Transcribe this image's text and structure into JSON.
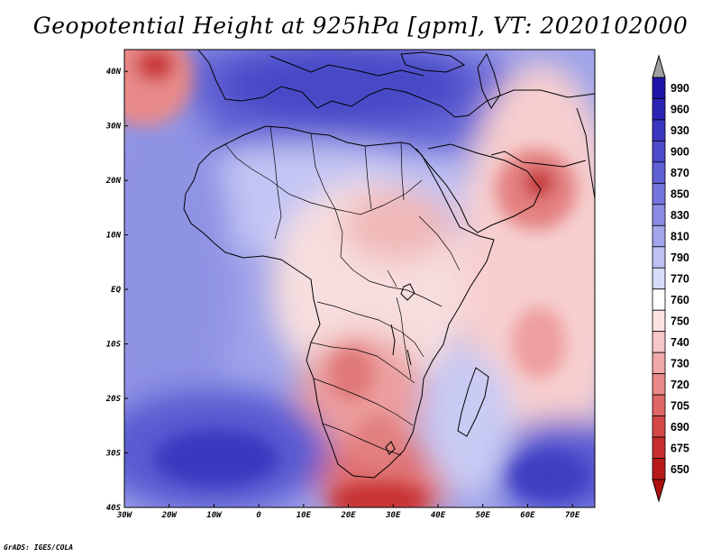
{
  "title": "Geopotential Height at 925hPa [gpm], VT: 2020102000",
  "credit": "GrADS: IGES/COLA",
  "map": {
    "lon_range": [
      -30,
      75
    ],
    "lat_range": [
      -40,
      44
    ],
    "x_ticks": [
      "30W",
      "20W",
      "10W",
      "0",
      "10E",
      "20E",
      "30E",
      "40E",
      "50E",
      "60E",
      "70E"
    ],
    "y_ticks": [
      "40N",
      "30N",
      "20N",
      "10N",
      "EQ",
      "10S",
      "20S",
      "30S",
      "40S"
    ],
    "features": [
      {
        "name": "NE Atlantic high",
        "value": 705,
        "lon": -22,
        "lat": 42
      },
      {
        "name": "Arabian Sea / Oman high",
        "value": 705,
        "lon": 62,
        "lat": 20
      },
      {
        "name": "Indian Ocean high",
        "value": 740,
        "lon": 62,
        "lat": -10
      },
      {
        "name": "Southern Africa high",
        "value": 720,
        "lon": 27,
        "lat": -38
      },
      {
        "name": "Mediterranean low",
        "value": 900,
        "lon": 15,
        "lat": 40
      },
      {
        "name": "South Atlantic low",
        "value": 900,
        "lon": -10,
        "lat": -31
      },
      {
        "name": "South Indian Ocean low",
        "value": 880,
        "lon": 68,
        "lat": -32
      }
    ]
  },
  "colorbar": {
    "levels": [
      "990",
      "960",
      "930",
      "900",
      "870",
      "850",
      "830",
      "810",
      "790",
      "770",
      "760",
      "750",
      "740",
      "730",
      "720",
      "705",
      "690",
      "675",
      "650"
    ],
    "colors": [
      "#1e14a8",
      "#2a24b4",
      "#3a36c0",
      "#4c4acb",
      "#5f60d4",
      "#7475dc",
      "#8a8ce4",
      "#a3a6ec",
      "#bec2f4",
      "#d9dbfa",
      "#ffffff",
      "#fbe2e2",
      "#f6c7c7",
      "#f0a8a8",
      "#e98888",
      "#e06666",
      "#d54848",
      "#c82e2e",
      "#b81a1a"
    ],
    "top_arrow_color": "#a0a0a0",
    "bottom_arrow_color": "#b01010"
  }
}
